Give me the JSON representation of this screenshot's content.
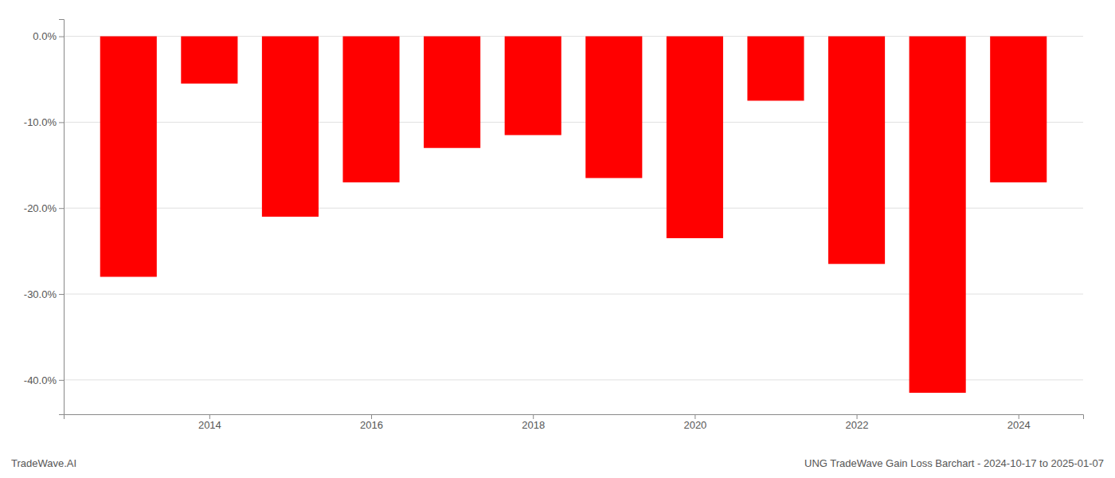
{
  "chart_data": {
    "type": "bar",
    "title": "UNG TradeWave Gain Loss Barchart - 2024-10-17 to 2025-01-07",
    "annotations": [
      "TradeWave.AI"
    ],
    "x": [
      2013,
      2014,
      2015,
      2016,
      2017,
      2018,
      2019,
      2020,
      2021,
      2022,
      2023,
      2024
    ],
    "values": [
      -28.0,
      -5.5,
      -21.0,
      -17.0,
      -13.0,
      -11.5,
      -16.5,
      -23.5,
      -7.5,
      -26.5,
      -41.5,
      -17.0
    ],
    "color": "#ff0000",
    "xlim": [
      2012.2,
      2024.8
    ],
    "xticks": [
      2014,
      2016,
      2018,
      2020,
      2022,
      2024
    ],
    "ylim": [
      -44,
      2.0
    ],
    "yticks": [
      {
        "value": 0.0,
        "label": "0.0%"
      },
      {
        "value": -10.0,
        "label": "-10.0%"
      },
      {
        "value": -20.0,
        "label": "-20.0%"
      },
      {
        "value": -30.0,
        "label": "-30.0%"
      },
      {
        "value": -40.0,
        "label": "-40.0%"
      }
    ],
    "grid": true
  }
}
